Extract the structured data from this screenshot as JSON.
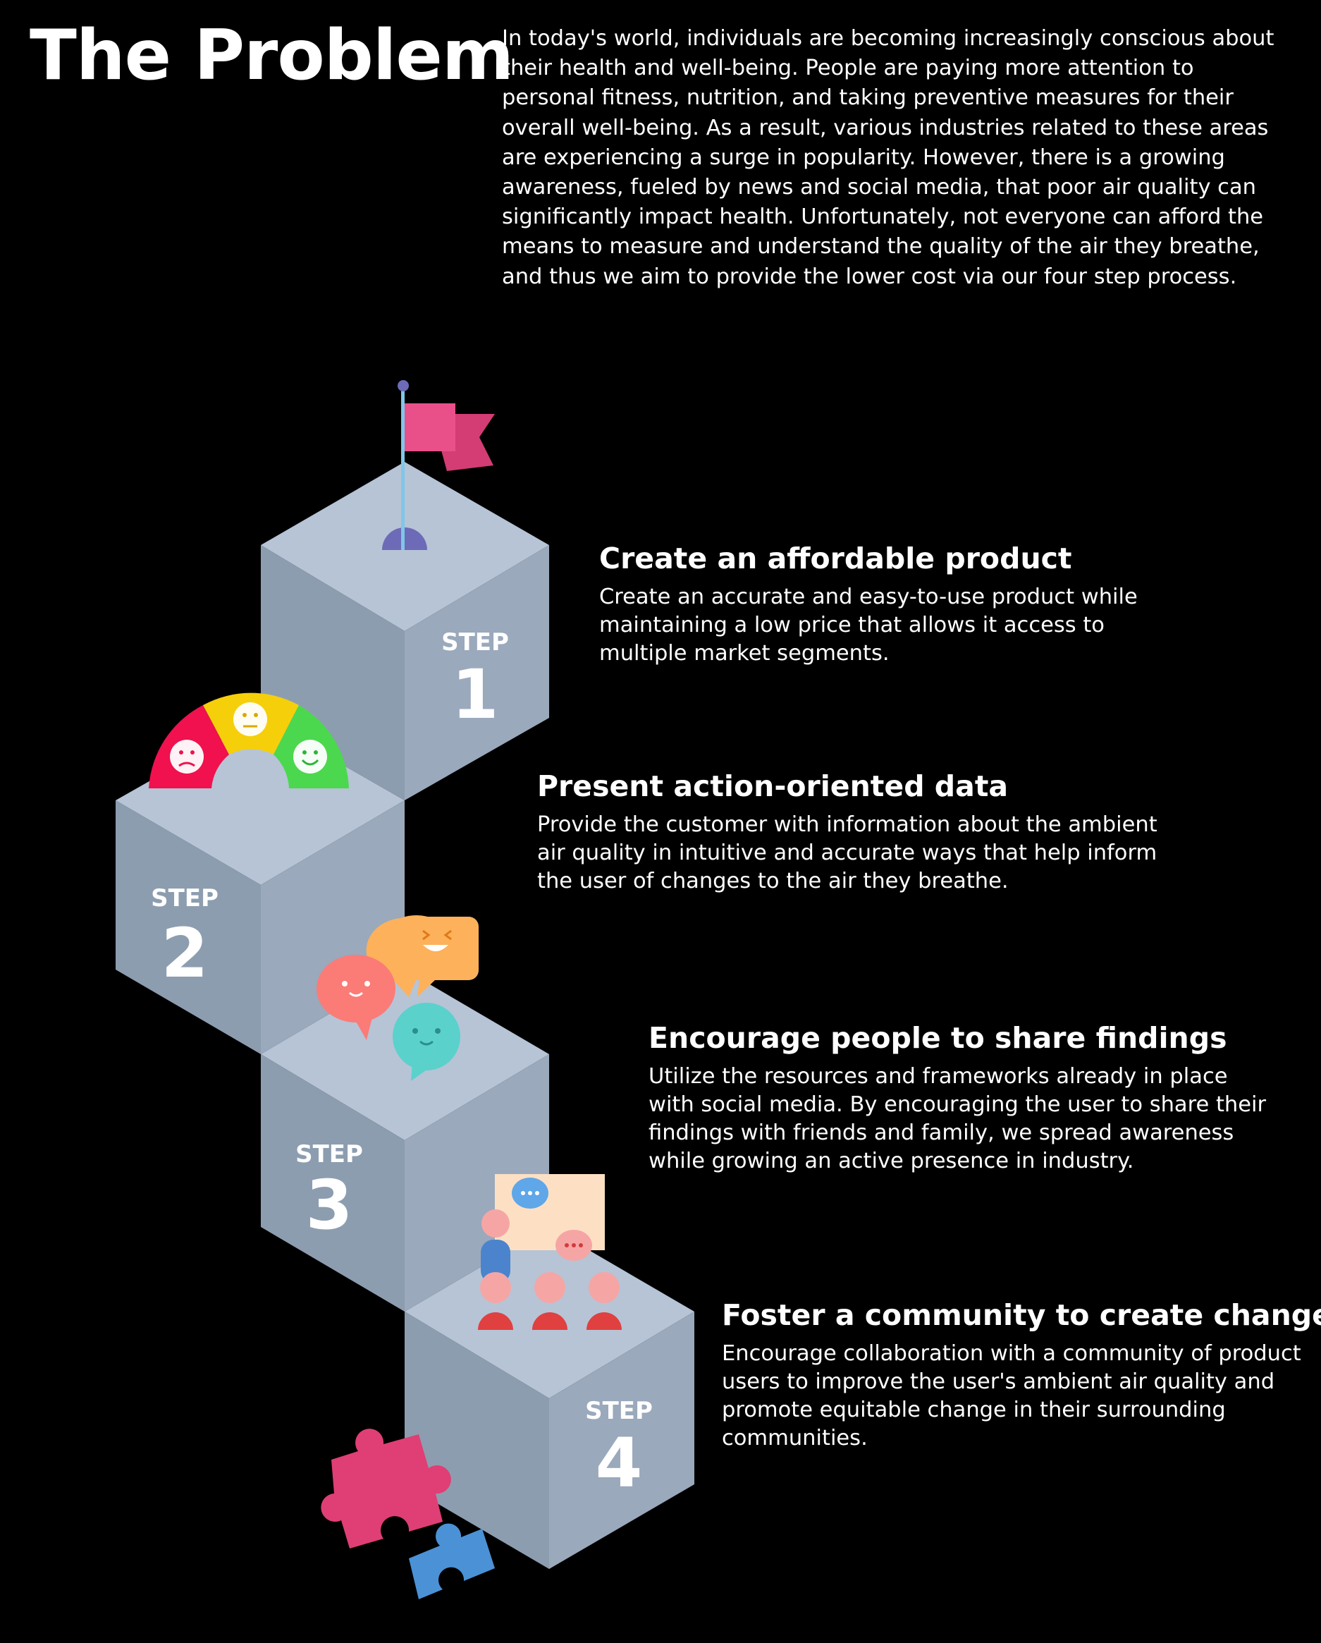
{
  "title": "The Problem",
  "intro": "In today's world, individuals are becoming increasingly conscious about their health and well-being. People are paying more attention to personal fitness, nutrition, and taking preventive measures for their overall well-being. As a result, various industries related to these areas are experiencing a surge in popularity. However, there is a growing awareness, fueled by news and social media, that poor air quality can significantly impact health. Unfortunately, not everyone can afford the means to measure and understand the quality of the air they breathe, and thus we aim to provide the lower cost via our four step process.",
  "steps": [
    {
      "word": "STEP",
      "number": "1",
      "heading": "Create an affordable product",
      "body": "Create an accurate and easy-to-use product while maintaining a low price that allows it access to multiple market segments."
    },
    {
      "word": "STEP",
      "number": "2",
      "heading": "Present action-oriented data",
      "body": "Provide the customer with information about the ambient air quality in intuitive and accurate ways that help inform the user of changes to the air they breathe."
    },
    {
      "word": "STEP",
      "number": "3",
      "heading": "Encourage people to share findings",
      "body": "Utilize the resources and frameworks already in place with social media. By encouraging the user to share their findings with friends and family, we spread awareness while growing an active presence in industry."
    },
    {
      "word": "STEP",
      "number": "4",
      "heading": "Foster a community to create change",
      "body": "Encourage collaboration with a community of product users to improve the user's ambient air quality and promote equitable change in their surrounding communities."
    }
  ],
  "colors": {
    "cube_top": "#b6c4d6",
    "cube_left": "#8d9db0",
    "cube_right": "#9aa9bb",
    "flag": "#e9508a",
    "gauge_red": "#f0114e",
    "gauge_yellow": "#f6cf0b",
    "gauge_green": "#4bd84e",
    "bubble_red": "#fb7b77",
    "bubble_orange": "#fdb15b",
    "bubble_teal": "#5bd1cc",
    "puzzle_pink": "#df3f74",
    "puzzle_blue": "#4b91d6"
  },
  "icons": [
    "flag-icon",
    "mood-gauge-icon",
    "chat-bubbles-icon",
    "community-meeting-icon",
    "puzzle-icon"
  ]
}
